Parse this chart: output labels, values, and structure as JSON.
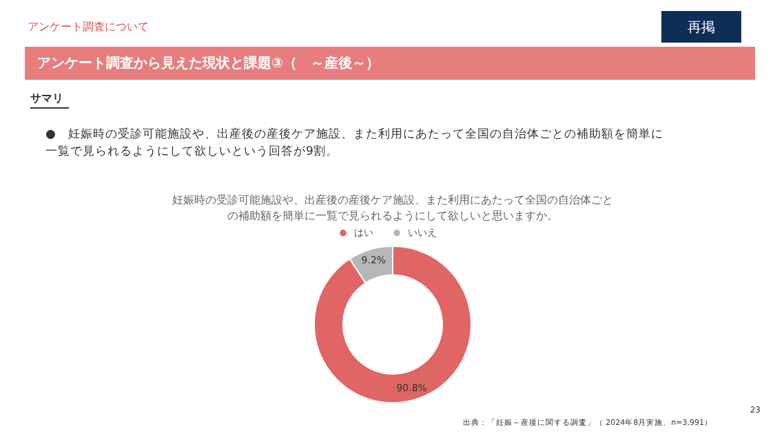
{
  "chart_data": {
    "type": "donut",
    "title": "妊娠時の受診可能施設や、出産後の産後ケア施設、また利用にあたって全国の自治体ごとの補助額を簡単に一覧で見られるようにして欲しいと思いますか。",
    "categories": [
      "はい",
      "いいえ"
    ],
    "values": [
      90.8,
      9.2
    ],
    "colors": [
      "#e06666",
      "#b7b7b7"
    ],
    "value_labels": [
      "90.8%",
      "9.2%"
    ],
    "legend": "top",
    "annotations": [
      "アンケート調査について",
      "再掲",
      "アンケート調査から見えた現状と課題③（　～産後～）",
      "サマリ",
      "●　妊娠時の受診可能施設や、出産後の産後ケア施設、また利用にあたって全国の自治体ごとの補助額を簡単に一覧で見られるようにして欲しいという回答が9割。",
      "出典：「妊娠～産後に関する調査」（ 2024年8月実施、n=3,991）",
      "23"
    ]
  }
}
